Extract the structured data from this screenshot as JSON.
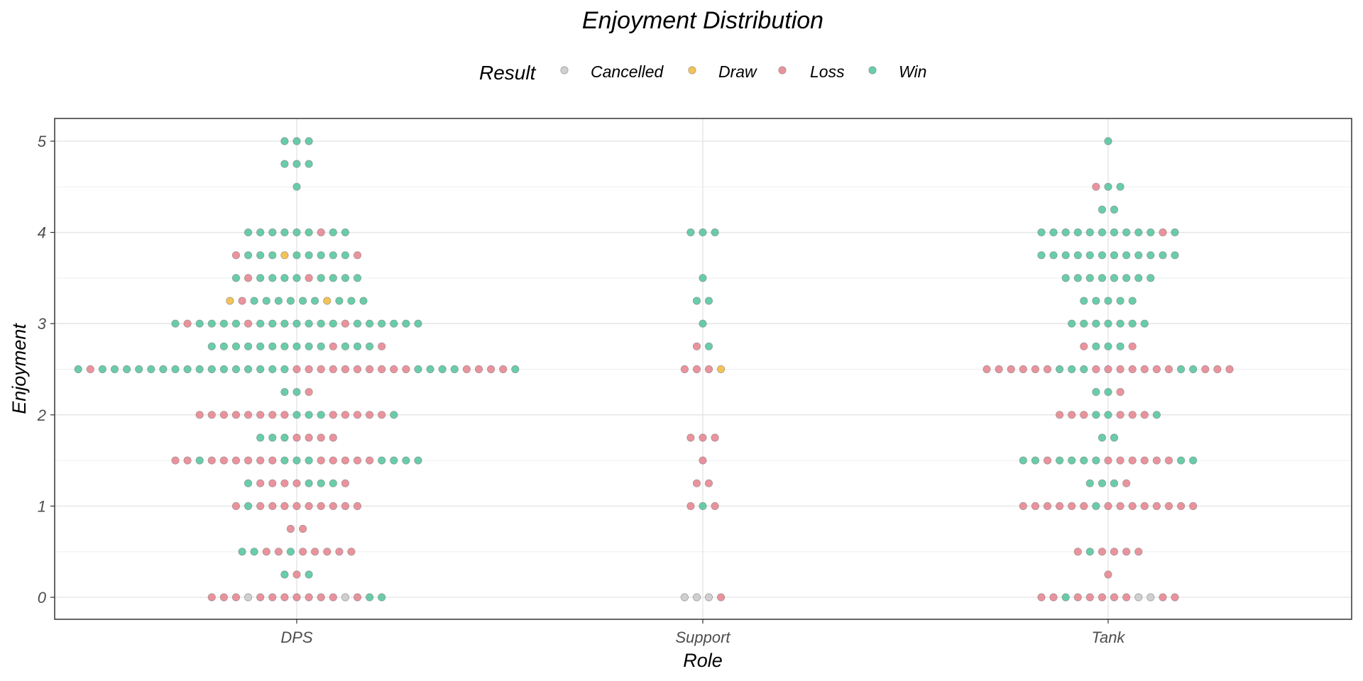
{
  "chart_data": {
    "type": "scatter",
    "subtype": "dotplot",
    "title": "Enjoyment Distribution",
    "xlabel": "Role",
    "ylabel": "Enjoyment",
    "categories": [
      "DPS",
      "Support",
      "Tank"
    ],
    "ylim": [
      -0.25,
      5.25
    ],
    "yticks": [
      0,
      1,
      2,
      3,
      4,
      5
    ],
    "grid": true,
    "legend": {
      "title": "Result",
      "placement": "top",
      "entries": [
        "Cancelled",
        "Draw",
        "Loss",
        "Win"
      ]
    },
    "colors": {
      "Cancelled": "#c8c8c8",
      "Draw": "#f2b93b",
      "Loss": "#e8808c",
      "Win": "#4fc49a"
    },
    "series": [
      {
        "category": "DPS",
        "rows": [
          {
            "y": 5,
            "points": [
              "Win",
              "Win",
              "Win"
            ]
          },
          {
            "y": 4.75,
            "points": [
              "Win",
              "Win",
              "Win"
            ]
          },
          {
            "y": 4.5,
            "points": [
              "Win"
            ]
          },
          {
            "y": 4,
            "points": [
              "Win",
              "Win",
              "Win",
              "Win",
              "Win",
              "Win",
              "Loss",
              "Win",
              "Win"
            ]
          },
          {
            "y": 3.75,
            "points": [
              "Loss",
              "Win",
              "Win",
              "Win",
              "Draw",
              "Win",
              "Win",
              "Win",
              "Win",
              "Win",
              "Loss"
            ]
          },
          {
            "y": 3.5,
            "points": [
              "Win",
              "Loss",
              "Win",
              "Win",
              "Win",
              "Win",
              "Loss",
              "Win",
              "Win",
              "Win",
              "Win"
            ]
          },
          {
            "y": 3.25,
            "points": [
              "Draw",
              "Loss",
              "Win",
              "Win",
              "Win",
              "Win",
              "Win",
              "Win",
              "Draw",
              "Win",
              "Win",
              "Win"
            ]
          },
          {
            "y": 3,
            "points": [
              "Win",
              "Loss",
              "Win",
              "Win",
              "Win",
              "Win",
              "Loss",
              "Win",
              "Win",
              "Win",
              "Win",
              "Win",
              "Win",
              "Win",
              "Loss",
              "Win",
              "Win",
              "Win",
              "Win",
              "Win",
              "Win"
            ]
          },
          {
            "y": 2.75,
            "points": [
              "Win",
              "Win",
              "Win",
              "Win",
              "Win",
              "Win",
              "Win",
              "Win",
              "Win",
              "Win",
              "Loss",
              "Win",
              "Win",
              "Win",
              "Loss"
            ]
          },
          {
            "y": 2.5,
            "points": [
              "Win",
              "Loss",
              "Win",
              "Win",
              "Win",
              "Win",
              "Win",
              "Win",
              "Win",
              "Win",
              "Win",
              "Win",
              "Win",
              "Win",
              "Win",
              "Win",
              "Win",
              "Win",
              "Loss",
              "Loss",
              "Loss",
              "Loss",
              "Loss",
              "Loss",
              "Loss",
              "Loss",
              "Loss",
              "Loss",
              "Win",
              "Win",
              "Win",
              "Win",
              "Loss",
              "Loss",
              "Loss",
              "Loss",
              "Win"
            ]
          },
          {
            "y": 2.25,
            "points": [
              "Win",
              "Win",
              "Loss"
            ]
          },
          {
            "y": 2,
            "points": [
              "Loss",
              "Loss",
              "Loss",
              "Loss",
              "Loss",
              "Loss",
              "Loss",
              "Loss",
              "Win",
              "Win",
              "Win",
              "Loss",
              "Loss",
              "Loss",
              "Loss",
              "Loss",
              "Win"
            ]
          },
          {
            "y": 1.75,
            "points": [
              "Win",
              "Win",
              "Win",
              "Loss",
              "Loss",
              "Loss",
              "Loss"
            ]
          },
          {
            "y": 1.5,
            "points": [
              "Loss",
              "Loss",
              "Win",
              "Loss",
              "Loss",
              "Loss",
              "Loss",
              "Loss",
              "Loss",
              "Win",
              "Win",
              "Win",
              "Loss",
              "Loss",
              "Loss",
              "Loss",
              "Loss",
              "Win",
              "Win",
              "Win",
              "Win"
            ]
          },
          {
            "y": 1.25,
            "points": [
              "Win",
              "Loss",
              "Loss",
              "Loss",
              "Loss",
              "Win",
              "Win",
              "Win",
              "Loss"
            ]
          },
          {
            "y": 1,
            "points": [
              "Loss",
              "Win",
              "Loss",
              "Loss",
              "Loss",
              "Loss",
              "Loss",
              "Loss",
              "Loss",
              "Loss",
              "Loss"
            ]
          },
          {
            "y": 0.75,
            "points": [
              "Loss",
              "Loss"
            ]
          },
          {
            "y": 0.5,
            "points": [
              "Win",
              "Win",
              "Loss",
              "Loss",
              "Win",
              "Loss",
              "Loss",
              "Loss",
              "Loss",
              "Loss"
            ]
          },
          {
            "y": 0.25,
            "points": [
              "Win",
              "Loss",
              "Win"
            ]
          },
          {
            "y": 0,
            "points": [
              "Loss",
              "Loss",
              "Loss",
              "Cancelled",
              "Loss",
              "Loss",
              "Loss",
              "Loss",
              "Loss",
              "Loss",
              "Loss",
              "Cancelled",
              "Loss",
              "Win",
              "Win"
            ]
          }
        ]
      },
      {
        "category": "Support",
        "rows": [
          {
            "y": 4,
            "points": [
              "Win",
              "Win",
              "Win"
            ]
          },
          {
            "y": 3.5,
            "points": [
              "Win"
            ]
          },
          {
            "y": 3.25,
            "points": [
              "Win",
              "Win"
            ]
          },
          {
            "y": 3,
            "points": [
              "Win"
            ]
          },
          {
            "y": 2.75,
            "points": [
              "Loss",
              "Win"
            ]
          },
          {
            "y": 2.5,
            "points": [
              "Loss",
              "Loss",
              "Loss",
              "Draw"
            ]
          },
          {
            "y": 1.75,
            "points": [
              "Loss",
              "Loss",
              "Loss"
            ]
          },
          {
            "y": 1.5,
            "points": [
              "Loss"
            ]
          },
          {
            "y": 1.25,
            "points": [
              "Loss",
              "Loss"
            ]
          },
          {
            "y": 1,
            "points": [
              "Loss",
              "Win",
              "Loss"
            ]
          },
          {
            "y": 0,
            "points": [
              "Cancelled",
              "Cancelled",
              "Cancelled",
              "Loss"
            ]
          }
        ]
      },
      {
        "category": "Tank",
        "rows": [
          {
            "y": 5,
            "points": [
              "Win"
            ]
          },
          {
            "y": 4.5,
            "points": [
              "Loss",
              "Win",
              "Win"
            ]
          },
          {
            "y": 4.25,
            "points": [
              "Win",
              "Win"
            ]
          },
          {
            "y": 4,
            "points": [
              "Win",
              "Win",
              "Win",
              "Win",
              "Win",
              "Win",
              "Win",
              "Win",
              "Win",
              "Win",
              "Loss",
              "Win"
            ]
          },
          {
            "y": 3.75,
            "points": [
              "Win",
              "Win",
              "Win",
              "Win",
              "Win",
              "Win",
              "Win",
              "Win",
              "Win",
              "Win",
              "Win",
              "Win"
            ]
          },
          {
            "y": 3.5,
            "points": [
              "Win",
              "Win",
              "Win",
              "Win",
              "Win",
              "Win",
              "Win",
              "Win"
            ]
          },
          {
            "y": 3.25,
            "points": [
              "Win",
              "Win",
              "Win",
              "Win",
              "Win"
            ]
          },
          {
            "y": 3,
            "points": [
              "Win",
              "Win",
              "Win",
              "Win",
              "Win",
              "Win",
              "Win"
            ]
          },
          {
            "y": 2.75,
            "points": [
              "Loss",
              "Win",
              "Win",
              "Win",
              "Loss"
            ]
          },
          {
            "y": 2.5,
            "points": [
              "Loss",
              "Loss",
              "Loss",
              "Loss",
              "Loss",
              "Loss",
              "Win",
              "Win",
              "Win",
              "Loss",
              "Loss",
              "Loss",
              "Loss",
              "Loss",
              "Loss",
              "Loss",
              "Win",
              "Win",
              "Loss",
              "Loss",
              "Loss"
            ]
          },
          {
            "y": 2.25,
            "points": [
              "Win",
              "Win",
              "Loss"
            ]
          },
          {
            "y": 2,
            "points": [
              "Loss",
              "Loss",
              "Loss",
              "Win",
              "Win",
              "Loss",
              "Loss",
              "Loss",
              "Win"
            ]
          },
          {
            "y": 1.75,
            "points": [
              "Win",
              "Win"
            ]
          },
          {
            "y": 1.5,
            "points": [
              "Win",
              "Win",
              "Loss",
              "Win",
              "Win",
              "Win",
              "Win",
              "Loss",
              "Loss",
              "Loss",
              "Loss",
              "Loss",
              "Loss",
              "Win",
              "Win"
            ]
          },
          {
            "y": 1.25,
            "points": [
              "Win",
              "Win",
              "Win",
              "Loss"
            ]
          },
          {
            "y": 1,
            "points": [
              "Loss",
              "Loss",
              "Loss",
              "Loss",
              "Loss",
              "Loss",
              "Win",
              "Loss",
              "Loss",
              "Loss",
              "Loss",
              "Loss",
              "Loss",
              "Loss",
              "Loss"
            ]
          },
          {
            "y": 0.5,
            "points": [
              "Loss",
              "Win",
              "Loss",
              "Loss",
              "Loss",
              "Loss"
            ]
          },
          {
            "y": 0.25,
            "points": [
              "Loss"
            ]
          },
          {
            "y": 0,
            "points": [
              "Loss",
              "Loss",
              "Win",
              "Loss",
              "Loss",
              "Loss",
              "Loss",
              "Loss",
              "Cancelled",
              "Cancelled",
              "Loss",
              "Loss"
            ]
          }
        ]
      }
    ]
  }
}
